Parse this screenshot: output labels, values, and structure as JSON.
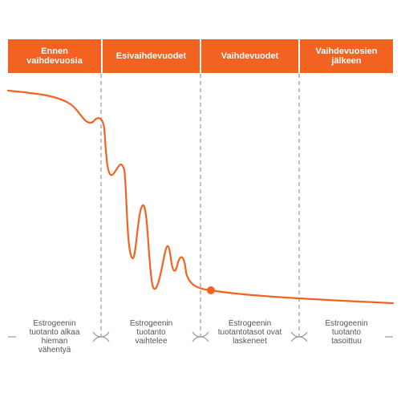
{
  "colors": {
    "accent": "#f26322",
    "divider": "#9a9a9a",
    "text": "#555555"
  },
  "stages": [
    {
      "title": "Ennen\nvaihdevuosia",
      "description": "Estrogeenin\ntuotanto alkaa\nhieman\nvähentyä"
    },
    {
      "title": "Esivaihdevuodet",
      "description": "Estrogeenin\ntuotanto\nvaihtelee"
    },
    {
      "title": "Vaihdevuodet",
      "description": "Estrogeenin\ntuotantotasot ovat\nlaskeneet"
    },
    {
      "title": "Vaihdevuosien\njälkeen",
      "description": "Estrogeenin\ntuotanto\ntasoittuu"
    }
  ]
}
